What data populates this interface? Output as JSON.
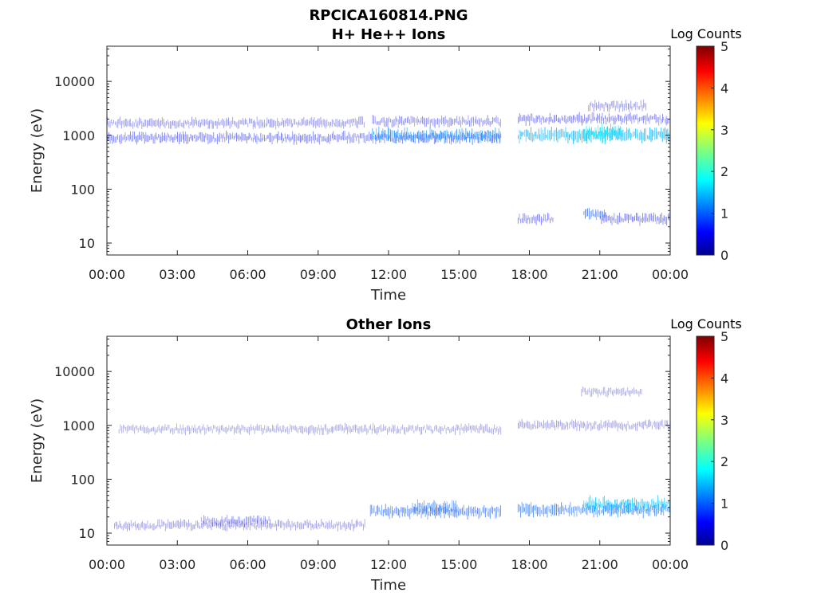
{
  "figure": {
    "title_line1": "RPCICA160814.PNG",
    "title_line2": "H+ He++ Ions"
  },
  "chart_data": [
    {
      "type": "heatmap",
      "title": "RPCICA160814.PNG\nH+ He++ Ions",
      "xlabel": "Time",
      "ylabel": "Energy (eV)",
      "x_ticks": [
        "00:00",
        "03:00",
        "06:00",
        "09:00",
        "12:00",
        "15:00",
        "18:00",
        "21:00",
        "00:00"
      ],
      "x_range_hours": [
        0,
        24
      ],
      "y_scale": "log",
      "y_ticks": [
        10,
        100,
        1000,
        10000
      ],
      "y_tick_labels": [
        "10",
        "100",
        "1000",
        "10000"
      ],
      "ylim": [
        6,
        45000
      ],
      "colorbar": {
        "label": "Log Counts",
        "range": [
          0,
          5
        ],
        "ticks": [
          "0",
          "1",
          "2",
          "3",
          "4",
          "5"
        ],
        "colormap": "jet"
      },
      "bands": [
        {
          "t_start": 0.0,
          "t_end": 16.8,
          "energy": 900,
          "log_counts": 0.7
        },
        {
          "t_start": 11.3,
          "t_end": 16.8,
          "energy": 1000,
          "log_counts": 1.3
        },
        {
          "t_start": 17.5,
          "t_end": 24.0,
          "energy": 1000,
          "log_counts": 1.5
        },
        {
          "t_start": 20.3,
          "t_end": 22.0,
          "energy": 1100,
          "log_counts": 1.8
        },
        {
          "t_start": 0.0,
          "t_end": 11.0,
          "energy": 1700,
          "log_counts": 0.4
        },
        {
          "t_start": 11.3,
          "t_end": 16.8,
          "energy": 1800,
          "log_counts": 0.5
        },
        {
          "t_start": 17.5,
          "t_end": 24.0,
          "energy": 2000,
          "log_counts": 0.6
        },
        {
          "t_start": 20.5,
          "t_end": 23.0,
          "energy": 3500,
          "log_counts": 0.4
        },
        {
          "t_start": 17.5,
          "t_end": 19.0,
          "energy": 28,
          "log_counts": 0.6
        },
        {
          "t_start": 20.3,
          "t_end": 21.3,
          "energy": 34,
          "log_counts": 1.0
        },
        {
          "t_start": 21.0,
          "t_end": 24.0,
          "energy": 28,
          "log_counts": 0.7
        }
      ]
    },
    {
      "type": "heatmap",
      "title": "Other Ions",
      "xlabel": "Time",
      "ylabel": "Energy (eV)",
      "x_ticks": [
        "00:00",
        "03:00",
        "06:00",
        "09:00",
        "12:00",
        "15:00",
        "18:00",
        "21:00",
        "00:00"
      ],
      "x_range_hours": [
        0,
        24
      ],
      "y_scale": "log",
      "y_ticks": [
        10,
        100,
        1000,
        10000
      ],
      "y_tick_labels": [
        "10",
        "100",
        "1000",
        "10000"
      ],
      "ylim": [
        6,
        45000
      ],
      "colorbar": {
        "label": "Log Counts",
        "range": [
          0,
          5
        ],
        "ticks": [
          "0",
          "1",
          "2",
          "3",
          "4",
          "5"
        ],
        "colormap": "jet"
      },
      "bands": [
        {
          "t_start": 0.3,
          "t_end": 11.0,
          "energy": 14,
          "log_counts": 0.3
        },
        {
          "t_start": 4.0,
          "t_end": 7.0,
          "energy": 17,
          "log_counts": 0.4
        },
        {
          "t_start": 11.2,
          "t_end": 16.8,
          "energy": 25,
          "log_counts": 1.0
        },
        {
          "t_start": 13.0,
          "t_end": 15.0,
          "energy": 30,
          "log_counts": 1.1
        },
        {
          "t_start": 17.5,
          "t_end": 24.0,
          "energy": 27,
          "log_counts": 1.1
        },
        {
          "t_start": 20.3,
          "t_end": 24.0,
          "energy": 34,
          "log_counts": 1.6
        },
        {
          "t_start": 0.5,
          "t_end": 16.8,
          "energy": 850,
          "log_counts": 0.2
        },
        {
          "t_start": 17.5,
          "t_end": 24.0,
          "energy": 1000,
          "log_counts": 0.3
        },
        {
          "t_start": 20.2,
          "t_end": 22.8,
          "energy": 4200,
          "log_counts": 0.2
        }
      ]
    }
  ]
}
